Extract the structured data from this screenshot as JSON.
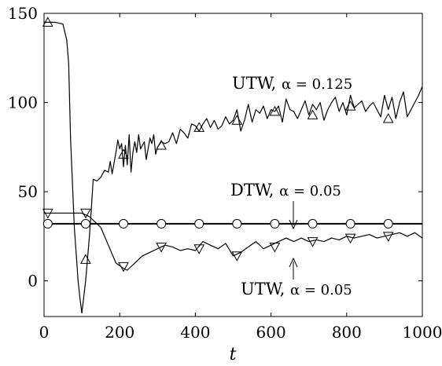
{
  "chart_data": {
    "type": "line",
    "xlabel": "t",
    "ylabel": "",
    "xlim": [
      0,
      1000
    ],
    "ylim": [
      -20,
      150
    ],
    "xticks": [
      0,
      200,
      400,
      600,
      800,
      1000
    ],
    "yticks": [
      0,
      50,
      100,
      150
    ],
    "grid": false,
    "series": [
      {
        "name": "UTW, α = 0.125",
        "marker": "triangle-up",
        "x": [
          0,
          30,
          50,
          60,
          65,
          70,
          80,
          90,
          95,
          100,
          110,
          120,
          125,
          130,
          140,
          150,
          160,
          170,
          175,
          180,
          185,
          190,
          195,
          200,
          205,
          210,
          215,
          220,
          225,
          230,
          235,
          240,
          245,
          250,
          255,
          260,
          265,
          270,
          275,
          280,
          285,
          290,
          295,
          300,
          310,
          320,
          330,
          340,
          350,
          360,
          370,
          380,
          390,
          400,
          410,
          420,
          430,
          440,
          450,
          460,
          470,
          480,
          490,
          500,
          510,
          520,
          530,
          540,
          550,
          560,
          570,
          580,
          590,
          600,
          610,
          620,
          630,
          640,
          650,
          660,
          670,
          680,
          690,
          700,
          710,
          720,
          730,
          740,
          750,
          760,
          770,
          780,
          790,
          800,
          810,
          820,
          830,
          840,
          850,
          860,
          870,
          880,
          890,
          900,
          910,
          920,
          930,
          940,
          950,
          960,
          970,
          980,
          990,
          1000
        ],
        "y": [
          145,
          145,
          144,
          135,
          122,
          80,
          30,
          0,
          -10,
          -18,
          0,
          25,
          40,
          57,
          56,
          58,
          62,
          61,
          67,
          60,
          66,
          72,
          79,
          74,
          77,
          64,
          76,
          65,
          82,
          61,
          72,
          78,
          72,
          82,
          74,
          76,
          78,
          68,
          74,
          80,
          77,
          82,
          71,
          75,
          78,
          77,
          78,
          83,
          77,
          85,
          83,
          80,
          88,
          87,
          84,
          88,
          91,
          86,
          90,
          85,
          87,
          92,
          88,
          90,
          96,
          84,
          90,
          99,
          89,
          96,
          94,
          98,
          91,
          96,
          95,
          98,
          89,
          102,
          96,
          95,
          91,
          96,
          101,
          93,
          99,
          96,
          100,
          90,
          96,
          100,
          103,
          95,
          100,
          93,
          104,
          97,
          99,
          101,
          95,
          98,
          100,
          96,
          92,
          104,
          96,
          103,
          91,
          100,
          106,
          92,
          96,
          100,
          104,
          109
        ],
        "markers_x": [
          10,
          110,
          210,
          310,
          410,
          510,
          610,
          710,
          810,
          910
        ],
        "markers_y": [
          145,
          12,
          71,
          76,
          86,
          90,
          95,
          93,
          98,
          91
        ]
      },
      {
        "name": "DTW, α = 0.05",
        "marker": "circle",
        "x": [
          0,
          1000
        ],
        "y": [
          32,
          32
        ],
        "markers_x": [
          10,
          110,
          210,
          310,
          410,
          510,
          610,
          710,
          810,
          910
        ],
        "markers_y": [
          32,
          32,
          32,
          32,
          32,
          32,
          32,
          32,
          32,
          32
        ]
      },
      {
        "name": "UTW, α = 0.05",
        "marker": "triangle-down",
        "x": [
          0,
          90,
          100,
          120,
          150,
          170,
          190,
          210,
          220,
          240,
          260,
          280,
          300,
          320,
          340,
          360,
          380,
          400,
          420,
          440,
          460,
          480,
          500,
          520,
          540,
          560,
          580,
          600,
          620,
          640,
          660,
          680,
          700,
          720,
          740,
          760,
          780,
          800,
          820,
          840,
          860,
          880,
          900,
          920,
          940,
          960,
          980,
          1000
        ],
        "y": [
          38,
          38,
          38,
          36,
          30,
          20,
          10,
          7,
          6,
          10,
          14,
          16,
          18,
          20,
          19,
          17,
          18,
          17,
          22,
          20,
          18,
          21,
          14,
          16,
          19,
          22,
          18,
          20,
          22,
          24,
          22,
          24,
          22,
          23,
          22,
          24,
          23,
          25,
          24,
          25,
          26,
          24,
          25,
          26,
          27,
          25,
          27,
          24
        ],
        "markers_x": [
          10,
          110,
          210,
          310,
          410,
          510,
          610,
          710,
          810,
          910
        ],
        "markers_y": [
          38,
          38,
          8,
          19,
          18,
          14,
          19,
          22,
          24,
          25
        ]
      }
    ],
    "annotations": [
      {
        "prefix": "UTW, ",
        "math": "α",
        "value": " = 0.125"
      },
      {
        "prefix": "DTW, ",
        "math": "α",
        "value": " = 0.05"
      },
      {
        "prefix": "UTW, ",
        "math": "α",
        "value": " = 0.05"
      }
    ]
  }
}
